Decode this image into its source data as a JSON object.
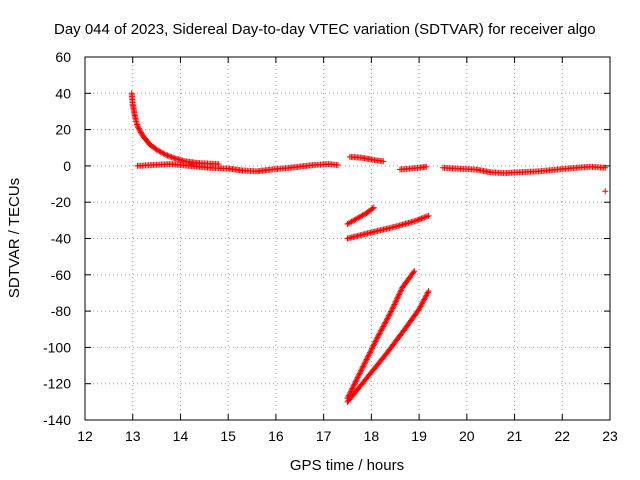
{
  "chart_data": {
    "type": "scatter",
    "title": "Day 044 of 2023, Sidereal Day-to-day VTEC variation (SDTVAR) for receiver algo",
    "xlabel": "GPS time / hours",
    "ylabel": "SDTVAR / TECUs",
    "xlim": [
      12,
      23
    ],
    "ylim": [
      -140,
      60
    ],
    "xticks": [
      "12",
      "13",
      "14",
      "15",
      "16",
      "17",
      "18",
      "19",
      "20",
      "21",
      "22",
      "23"
    ],
    "yticks": [
      "60",
      "40",
      "20",
      "0",
      "-20",
      "-40",
      "-60",
      "-80",
      "-100",
      "-120",
      "-140"
    ],
    "grid": true,
    "legend": "none",
    "marker": "plus",
    "colors": {
      "series": "#ff0000",
      "grid": "#a0a0a0",
      "axis": "#000000"
    },
    "series": [
      {
        "segments": [
          {
            "points": [
              [
                12.98,
                40
              ],
              [
                13.0,
                34
              ],
              [
                13.05,
                27
              ],
              [
                13.1,
                22
              ],
              [
                13.2,
                17
              ],
              [
                13.35,
                12
              ],
              [
                13.5,
                9
              ],
              [
                13.7,
                6
              ],
              [
                13.9,
                4
              ],
              [
                14.1,
                2.5
              ],
              [
                14.4,
                1.5
              ],
              [
                14.8,
                1
              ]
            ]
          },
          {
            "points": [
              [
                13.1,
                0
              ],
              [
                13.4,
                0.5
              ],
              [
                13.8,
                1
              ],
              [
                14.2,
                0
              ],
              [
                14.6,
                -1
              ],
              [
                15.0,
                -1.5
              ],
              [
                15.3,
                -2.5
              ],
              [
                15.6,
                -3
              ],
              [
                15.9,
                -2
              ],
              [
                16.3,
                -1
              ],
              [
                16.8,
                0.5
              ],
              [
                17.1,
                1
              ],
              [
                17.3,
                0.5
              ]
            ]
          },
          {
            "points": [
              [
                17.55,
                5
              ],
              [
                17.8,
                4.5
              ],
              [
                18.0,
                3.5
              ],
              [
                18.25,
                2.5
              ]
            ]
          },
          {
            "points": [
              [
                18.6,
                -2
              ],
              [
                18.8,
                -1.5
              ],
              [
                19.0,
                -1
              ],
              [
                19.15,
                -0.5
              ]
            ]
          },
          {
            "points": [
              [
                19.5,
                -1
              ],
              [
                19.8,
                -1.5
              ],
              [
                20.2,
                -2
              ],
              [
                20.5,
                -3.5
              ],
              [
                20.8,
                -4
              ],
              [
                21.1,
                -3.5
              ],
              [
                21.5,
                -3
              ],
              [
                21.9,
                -2
              ],
              [
                22.3,
                -1
              ],
              [
                22.6,
                -0.5
              ],
              [
                22.9,
                -1
              ]
            ]
          },
          {
            "points": [
              [
                17.5,
                -32
              ],
              [
                17.7,
                -29
              ],
              [
                17.9,
                -26
              ],
              [
                18.05,
                -23
              ]
            ]
          },
          {
            "points": [
              [
                17.5,
                -40
              ],
              [
                17.8,
                -38
              ],
              [
                18.1,
                -36
              ],
              [
                18.5,
                -33.5
              ],
              [
                18.9,
                -30.5
              ],
              [
                19.2,
                -27.5
              ]
            ]
          },
          {
            "points": [
              [
                17.5,
                -128
              ],
              [
                17.8,
                -112
              ],
              [
                18.1,
                -96
              ],
              [
                18.4,
                -81
              ],
              [
                18.65,
                -67
              ],
              [
                18.9,
                -58
              ]
            ]
          },
          {
            "points": [
              [
                17.5,
                -130
              ],
              [
                17.9,
                -117
              ],
              [
                18.3,
                -104
              ],
              [
                18.7,
                -90
              ],
              [
                19.0,
                -79
              ],
              [
                19.2,
                -69
              ]
            ]
          },
          {
            "points": [
              [
                22.9,
                -14
              ]
            ]
          }
        ]
      }
    ]
  }
}
